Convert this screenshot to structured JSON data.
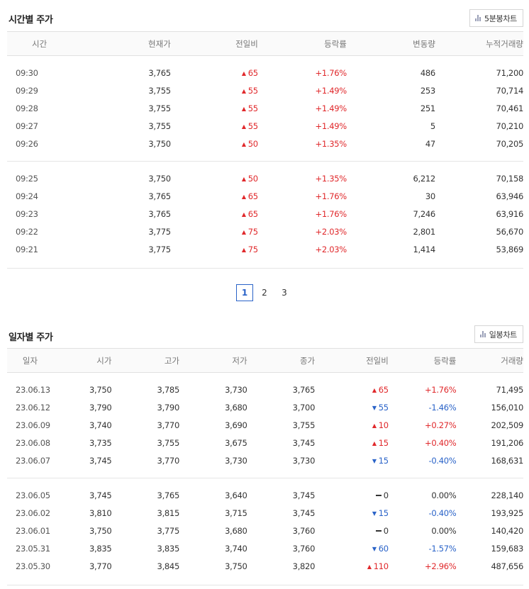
{
  "intraday": {
    "title": "시간별 주가",
    "chart_button": "5분봉차트",
    "headers": [
      "시간",
      "현재가",
      "전일비",
      "등락률",
      "변동량",
      "누적거래량"
    ],
    "groups": [
      [
        {
          "time": "09:30",
          "price": "3,765",
          "dir": "up",
          "change": "65",
          "rate": "+1.76%",
          "vol": "486",
          "acc": "71,200"
        },
        {
          "time": "09:29",
          "price": "3,755",
          "dir": "up",
          "change": "55",
          "rate": "+1.49%",
          "vol": "253",
          "acc": "70,714"
        },
        {
          "time": "09:28",
          "price": "3,755",
          "dir": "up",
          "change": "55",
          "rate": "+1.49%",
          "vol": "251",
          "acc": "70,461"
        },
        {
          "time": "09:27",
          "price": "3,755",
          "dir": "up",
          "change": "55",
          "rate": "+1.49%",
          "vol": "5",
          "acc": "70,210"
        },
        {
          "time": "09:26",
          "price": "3,750",
          "dir": "up",
          "change": "50",
          "rate": "+1.35%",
          "vol": "47",
          "acc": "70,205"
        }
      ],
      [
        {
          "time": "09:25",
          "price": "3,750",
          "dir": "up",
          "change": "50",
          "rate": "+1.35%",
          "vol": "6,212",
          "acc": "70,158"
        },
        {
          "time": "09:24",
          "price": "3,765",
          "dir": "up",
          "change": "65",
          "rate": "+1.76%",
          "vol": "30",
          "acc": "63,946"
        },
        {
          "time": "09:23",
          "price": "3,765",
          "dir": "up",
          "change": "65",
          "rate": "+1.76%",
          "vol": "7,246",
          "acc": "63,916"
        },
        {
          "time": "09:22",
          "price": "3,775",
          "dir": "up",
          "change": "75",
          "rate": "+2.03%",
          "vol": "2,801",
          "acc": "56,670"
        },
        {
          "time": "09:21",
          "price": "3,775",
          "dir": "up",
          "change": "75",
          "rate": "+2.03%",
          "vol": "1,414",
          "acc": "53,869"
        }
      ]
    ],
    "pagination": {
      "pages": [
        "1",
        "2",
        "3"
      ],
      "current": "1"
    }
  },
  "daily": {
    "title": "일자별 주가",
    "chart_button": "일봉차트",
    "headers": [
      "일자",
      "시가",
      "고가",
      "저가",
      "종가",
      "전일비",
      "등락률",
      "거래량"
    ],
    "groups": [
      [
        {
          "date": "23.06.13",
          "open": "3,750",
          "high": "3,785",
          "low": "3,730",
          "close": "3,765",
          "dir": "up",
          "change": "65",
          "rate": "+1.76%",
          "vol": "71,495"
        },
        {
          "date": "23.06.12",
          "open": "3,790",
          "high": "3,790",
          "low": "3,680",
          "close": "3,700",
          "dir": "down",
          "change": "55",
          "rate": "-1.46%",
          "vol": "156,010"
        },
        {
          "date": "23.06.09",
          "open": "3,740",
          "high": "3,770",
          "low": "3,690",
          "close": "3,755",
          "dir": "up",
          "change": "10",
          "rate": "+0.27%",
          "vol": "202,509"
        },
        {
          "date": "23.06.08",
          "open": "3,735",
          "high": "3,755",
          "low": "3,675",
          "close": "3,745",
          "dir": "up",
          "change": "15",
          "rate": "+0.40%",
          "vol": "191,206"
        },
        {
          "date": "23.06.07",
          "open": "3,745",
          "high": "3,770",
          "low": "3,730",
          "close": "3,730",
          "dir": "down",
          "change": "15",
          "rate": "-0.40%",
          "vol": "168,631"
        }
      ],
      [
        {
          "date": "23.06.05",
          "open": "3,745",
          "high": "3,765",
          "low": "3,640",
          "close": "3,745",
          "dir": "flat",
          "change": "0",
          "rate": "0.00%",
          "vol": "228,140"
        },
        {
          "date": "23.06.02",
          "open": "3,810",
          "high": "3,815",
          "low": "3,715",
          "close": "3,745",
          "dir": "down",
          "change": "15",
          "rate": "-0.40%",
          "vol": "193,925"
        },
        {
          "date": "23.06.01",
          "open": "3,750",
          "high": "3,775",
          "low": "3,680",
          "close": "3,760",
          "dir": "flat",
          "change": "0",
          "rate": "0.00%",
          "vol": "140,420"
        },
        {
          "date": "23.05.31",
          "open": "3,835",
          "high": "3,835",
          "low": "3,740",
          "close": "3,760",
          "dir": "down",
          "change": "60",
          "rate": "-1.57%",
          "vol": "159,683"
        },
        {
          "date": "23.05.30",
          "open": "3,770",
          "high": "3,845",
          "low": "3,750",
          "close": "3,820",
          "dir": "up",
          "change": "110",
          "rate": "+2.96%",
          "vol": "487,656"
        }
      ]
    ]
  },
  "colors": {
    "up": "#e0282b",
    "down": "#2a63c8",
    "flat": "#333333",
    "pager_active": "#2a63c8"
  },
  "icons": {
    "chart_button_icon": "bar-chart-icon",
    "up": "triangle-up-icon",
    "down": "triangle-down-icon",
    "flat": "dash-icon"
  }
}
